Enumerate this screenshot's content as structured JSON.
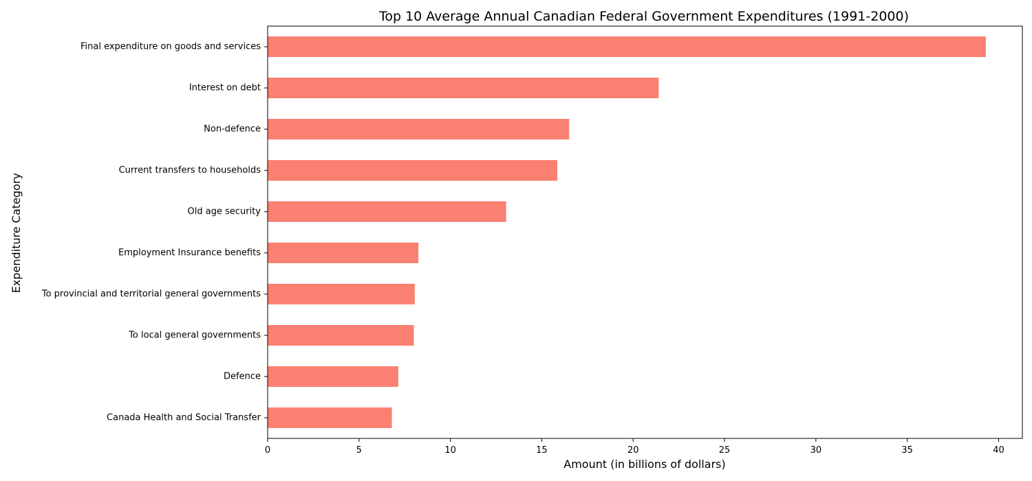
{
  "chart_data": {
    "type": "bar",
    "orientation": "horizontal",
    "title": "Top 10 Average Annual Canadian Federal Government Expenditures (1991-2000)",
    "xlabel": "Amount (in billions of dollars)",
    "ylabel": "Expenditure Category",
    "categories": [
      "Final expenditure on goods and services",
      "Interest on debt",
      "Non-defence",
      "Current transfers to households",
      "Old age security",
      "Employment Insurance benefits",
      "To provincial and territorial general governments",
      "To local general governments",
      "Defence",
      "Canada Health and Social Transfer"
    ],
    "values": [
      39.3,
      21.4,
      16.5,
      15.85,
      13.05,
      8.25,
      8.05,
      8.0,
      7.15,
      6.8
    ],
    "xlim": [
      0,
      41.3
    ],
    "xticks": [
      0,
      5,
      10,
      15,
      20,
      25,
      30,
      35,
      40
    ],
    "bar_color": "#fa8072",
    "grid": false,
    "legend": false
  }
}
